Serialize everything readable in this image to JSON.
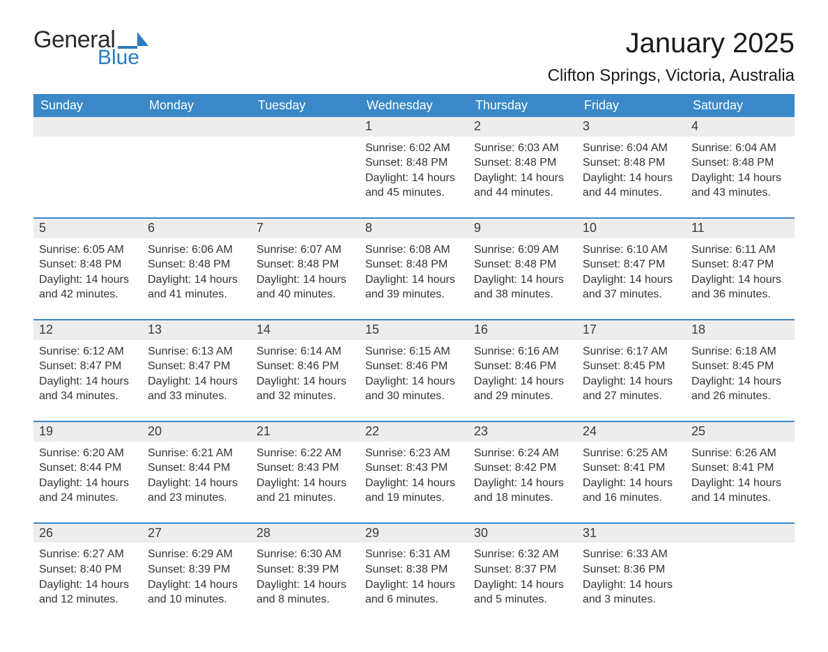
{
  "brand": {
    "word1": "General",
    "word2": "Blue"
  },
  "title": "January 2025",
  "location": "Clifton Springs, Victoria, Australia",
  "colors": {
    "header_blue": "#3a88c7",
    "brand_blue": "#2a7cc0",
    "daynum_bg": "#ededed",
    "row_divider": "#3a88c7",
    "background": "#ffffff",
    "text_dark": "#222222"
  },
  "typography": {
    "title_fontsize": 40,
    "location_fontsize": 24,
    "header_fontsize": 18,
    "daynum_fontsize": 18,
    "body_fontsize": 16,
    "font_family": "Arial"
  },
  "calendar": {
    "type": "table",
    "columns": [
      "Sunday",
      "Monday",
      "Tuesday",
      "Wednesday",
      "Thursday",
      "Friday",
      "Saturday"
    ],
    "weeks": [
      [
        null,
        null,
        null,
        {
          "n": "1",
          "sunrise": "Sunrise: 6:02 AM",
          "sunset": "Sunset: 8:48 PM",
          "day1": "Daylight: 14 hours",
          "day2": "and 45 minutes."
        },
        {
          "n": "2",
          "sunrise": "Sunrise: 6:03 AM",
          "sunset": "Sunset: 8:48 PM",
          "day1": "Daylight: 14 hours",
          "day2": "and 44 minutes."
        },
        {
          "n": "3",
          "sunrise": "Sunrise: 6:04 AM",
          "sunset": "Sunset: 8:48 PM",
          "day1": "Daylight: 14 hours",
          "day2": "and 44 minutes."
        },
        {
          "n": "4",
          "sunrise": "Sunrise: 6:04 AM",
          "sunset": "Sunset: 8:48 PM",
          "day1": "Daylight: 14 hours",
          "day2": "and 43 minutes."
        }
      ],
      [
        {
          "n": "5",
          "sunrise": "Sunrise: 6:05 AM",
          "sunset": "Sunset: 8:48 PM",
          "day1": "Daylight: 14 hours",
          "day2": "and 42 minutes."
        },
        {
          "n": "6",
          "sunrise": "Sunrise: 6:06 AM",
          "sunset": "Sunset: 8:48 PM",
          "day1": "Daylight: 14 hours",
          "day2": "and 41 minutes."
        },
        {
          "n": "7",
          "sunrise": "Sunrise: 6:07 AM",
          "sunset": "Sunset: 8:48 PM",
          "day1": "Daylight: 14 hours",
          "day2": "and 40 minutes."
        },
        {
          "n": "8",
          "sunrise": "Sunrise: 6:08 AM",
          "sunset": "Sunset: 8:48 PM",
          "day1": "Daylight: 14 hours",
          "day2": "and 39 minutes."
        },
        {
          "n": "9",
          "sunrise": "Sunrise: 6:09 AM",
          "sunset": "Sunset: 8:48 PM",
          "day1": "Daylight: 14 hours",
          "day2": "and 38 minutes."
        },
        {
          "n": "10",
          "sunrise": "Sunrise: 6:10 AM",
          "sunset": "Sunset: 8:47 PM",
          "day1": "Daylight: 14 hours",
          "day2": "and 37 minutes."
        },
        {
          "n": "11",
          "sunrise": "Sunrise: 6:11 AM",
          "sunset": "Sunset: 8:47 PM",
          "day1": "Daylight: 14 hours",
          "day2": "and 36 minutes."
        }
      ],
      [
        {
          "n": "12",
          "sunrise": "Sunrise: 6:12 AM",
          "sunset": "Sunset: 8:47 PM",
          "day1": "Daylight: 14 hours",
          "day2": "and 34 minutes."
        },
        {
          "n": "13",
          "sunrise": "Sunrise: 6:13 AM",
          "sunset": "Sunset: 8:47 PM",
          "day1": "Daylight: 14 hours",
          "day2": "and 33 minutes."
        },
        {
          "n": "14",
          "sunrise": "Sunrise: 6:14 AM",
          "sunset": "Sunset: 8:46 PM",
          "day1": "Daylight: 14 hours",
          "day2": "and 32 minutes."
        },
        {
          "n": "15",
          "sunrise": "Sunrise: 6:15 AM",
          "sunset": "Sunset: 8:46 PM",
          "day1": "Daylight: 14 hours",
          "day2": "and 30 minutes."
        },
        {
          "n": "16",
          "sunrise": "Sunrise: 6:16 AM",
          "sunset": "Sunset: 8:46 PM",
          "day1": "Daylight: 14 hours",
          "day2": "and 29 minutes."
        },
        {
          "n": "17",
          "sunrise": "Sunrise: 6:17 AM",
          "sunset": "Sunset: 8:45 PM",
          "day1": "Daylight: 14 hours",
          "day2": "and 27 minutes."
        },
        {
          "n": "18",
          "sunrise": "Sunrise: 6:18 AM",
          "sunset": "Sunset: 8:45 PM",
          "day1": "Daylight: 14 hours",
          "day2": "and 26 minutes."
        }
      ],
      [
        {
          "n": "19",
          "sunrise": "Sunrise: 6:20 AM",
          "sunset": "Sunset: 8:44 PM",
          "day1": "Daylight: 14 hours",
          "day2": "and 24 minutes."
        },
        {
          "n": "20",
          "sunrise": "Sunrise: 6:21 AM",
          "sunset": "Sunset: 8:44 PM",
          "day1": "Daylight: 14 hours",
          "day2": "and 23 minutes."
        },
        {
          "n": "21",
          "sunrise": "Sunrise: 6:22 AM",
          "sunset": "Sunset: 8:43 PM",
          "day1": "Daylight: 14 hours",
          "day2": "and 21 minutes."
        },
        {
          "n": "22",
          "sunrise": "Sunrise: 6:23 AM",
          "sunset": "Sunset: 8:43 PM",
          "day1": "Daylight: 14 hours",
          "day2": "and 19 minutes."
        },
        {
          "n": "23",
          "sunrise": "Sunrise: 6:24 AM",
          "sunset": "Sunset: 8:42 PM",
          "day1": "Daylight: 14 hours",
          "day2": "and 18 minutes."
        },
        {
          "n": "24",
          "sunrise": "Sunrise: 6:25 AM",
          "sunset": "Sunset: 8:41 PM",
          "day1": "Daylight: 14 hours",
          "day2": "and 16 minutes."
        },
        {
          "n": "25",
          "sunrise": "Sunrise: 6:26 AM",
          "sunset": "Sunset: 8:41 PM",
          "day1": "Daylight: 14 hours",
          "day2": "and 14 minutes."
        }
      ],
      [
        {
          "n": "26",
          "sunrise": "Sunrise: 6:27 AM",
          "sunset": "Sunset: 8:40 PM",
          "day1": "Daylight: 14 hours",
          "day2": "and 12 minutes."
        },
        {
          "n": "27",
          "sunrise": "Sunrise: 6:29 AM",
          "sunset": "Sunset: 8:39 PM",
          "day1": "Daylight: 14 hours",
          "day2": "and 10 minutes."
        },
        {
          "n": "28",
          "sunrise": "Sunrise: 6:30 AM",
          "sunset": "Sunset: 8:39 PM",
          "day1": "Daylight: 14 hours",
          "day2": "and 8 minutes."
        },
        {
          "n": "29",
          "sunrise": "Sunrise: 6:31 AM",
          "sunset": "Sunset: 8:38 PM",
          "day1": "Daylight: 14 hours",
          "day2": "and 6 minutes."
        },
        {
          "n": "30",
          "sunrise": "Sunrise: 6:32 AM",
          "sunset": "Sunset: 8:37 PM",
          "day1": "Daylight: 14 hours",
          "day2": "and 5 minutes."
        },
        {
          "n": "31",
          "sunrise": "Sunrise: 6:33 AM",
          "sunset": "Sunset: 8:36 PM",
          "day1": "Daylight: 14 hours",
          "day2": "and 3 minutes."
        },
        null
      ]
    ]
  }
}
